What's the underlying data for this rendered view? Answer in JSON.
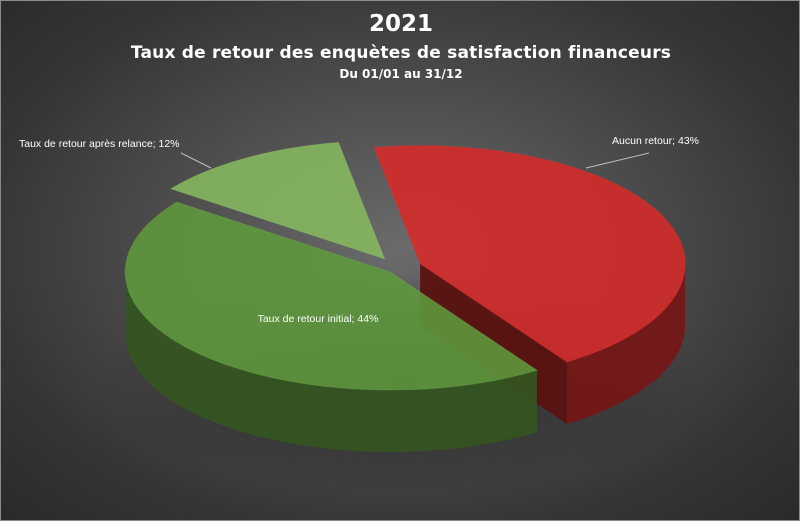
{
  "chart_data": {
    "type": "pie",
    "title": "2021",
    "subtitle": "Taux de retour des enquètes de satisfaction financeurs",
    "period": "Du 01/01 au 31/12",
    "slices": [
      {
        "label": "Aucun retour",
        "value": 43,
        "data_label": "Aucun retour; 43%",
        "color": "#d62a28"
      },
      {
        "label": "Taux de retour initial",
        "value": 44,
        "data_label": "Taux de retour initial; 44%",
        "color": "#5f9a3c"
      },
      {
        "label": "Taux de retour après relance",
        "value": 12,
        "data_label": "Taux de retour après relance; 12%",
        "color": "#86b85e"
      }
    ],
    "legend": "none",
    "style": "3d-exploded"
  }
}
